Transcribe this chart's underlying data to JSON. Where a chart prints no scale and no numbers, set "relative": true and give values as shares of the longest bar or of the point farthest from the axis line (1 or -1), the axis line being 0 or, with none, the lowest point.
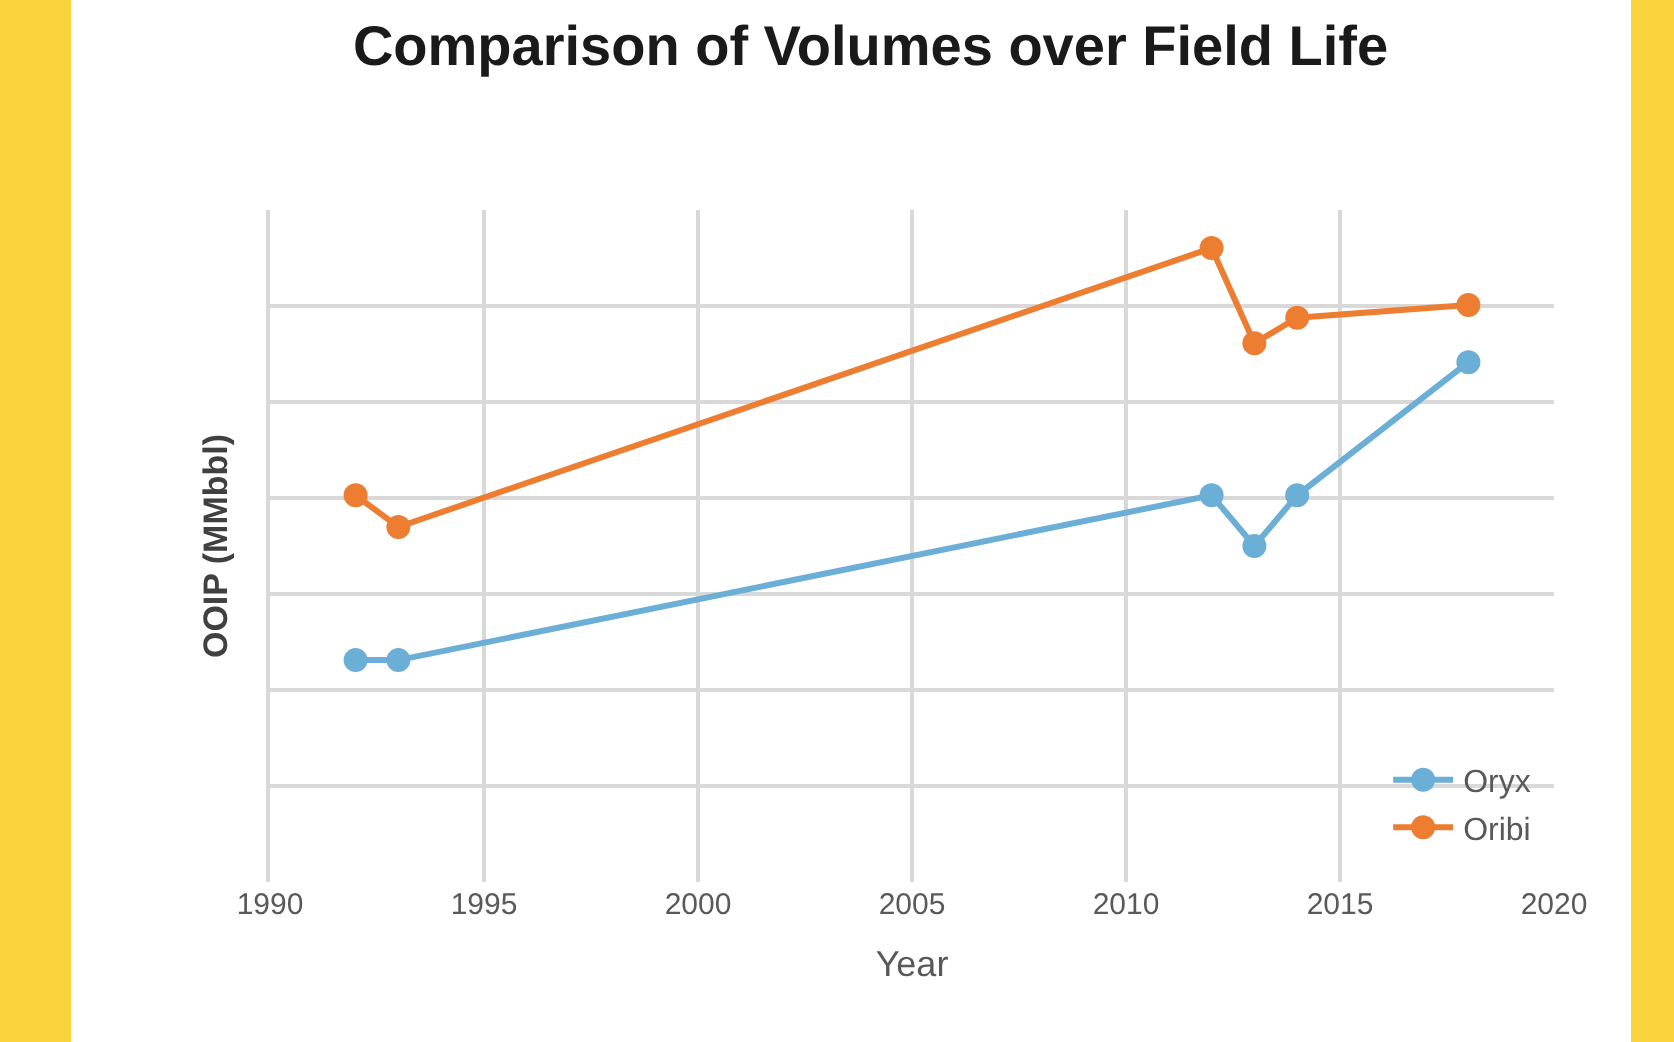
{
  "chart_data": {
    "type": "line",
    "title": "Comparison of Volumes over Field Life",
    "xlabel": "Year",
    "ylabel": "OOIP (MMbbl)",
    "x": [
      1992,
      1993,
      2012,
      2013,
      2014,
      2018
    ],
    "relative": true,
    "series": [
      {
        "name": "Oryx",
        "color": "#6baed6",
        "values": [
          0.35,
          0.35,
          0.61,
          0.53,
          0.61,
          0.82
        ]
      },
      {
        "name": "Oribi",
        "color": "#ed7d31",
        "values": [
          0.61,
          0.56,
          1,
          0.85,
          0.89,
          0.91
        ]
      }
    ],
    "xlim": [
      1990,
      2020
    ],
    "xticks": [
      1990,
      1995,
      2000,
      2005,
      2010,
      2015,
      2020
    ],
    "grid": true,
    "legend": "bottom right",
    "marker": "circle",
    "line_style": "solid"
  }
}
